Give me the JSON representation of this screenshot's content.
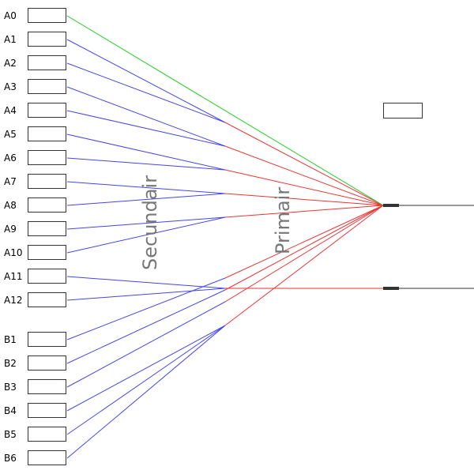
{
  "labels": {
    "secundair": "Secundair",
    "primair": "Primair"
  },
  "ports": [
    {
      "name": "A0"
    },
    {
      "name": "A1"
    },
    {
      "name": "A2"
    },
    {
      "name": "A3"
    },
    {
      "name": "A4"
    },
    {
      "name": "A5"
    },
    {
      "name": "A6"
    },
    {
      "name": "A7"
    },
    {
      "name": "A8"
    },
    {
      "name": "A9"
    },
    {
      "name": "A10"
    },
    {
      "name": "A11"
    },
    {
      "name": "A12"
    },
    {
      "name": "B1"
    },
    {
      "name": "B2"
    },
    {
      "name": "B3"
    },
    {
      "name": "B4"
    },
    {
      "name": "B5"
    },
    {
      "name": "B6"
    }
  ],
  "colors": {
    "secondary_line": "#4444ee",
    "primary_line": "#ee3333",
    "direct_line": "#22cc22",
    "output_line": "#333333"
  }
}
